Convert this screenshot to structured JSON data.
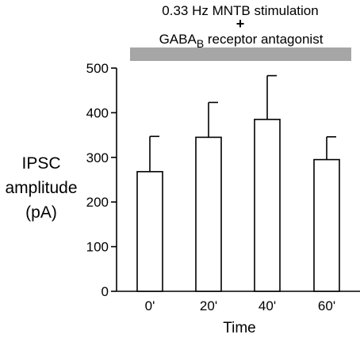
{
  "annotation": {
    "line1": "0.33 Hz MNTB stimulation",
    "plus": "+",
    "line3_main": "GABA",
    "line3_sub": "B",
    "line3_rest": " receptor antagonist",
    "bar_color": "#a6a6a6"
  },
  "chart_data": {
    "type": "bar",
    "categories": [
      "0'",
      "20'",
      "40'",
      "60'"
    ],
    "values": [
      268,
      345,
      385,
      295
    ],
    "errors": [
      79,
      78,
      98,
      51
    ],
    "ylabel_lines": [
      "IPSC",
      "amplitude",
      "(pA)"
    ],
    "xlabel": "Time",
    "ylim": [
      0,
      500
    ],
    "yticks": [
      0,
      100,
      200,
      300,
      400,
      500
    ],
    "grid": false,
    "bar_fill": "#ffffff",
    "bar_stroke": "#000000"
  }
}
